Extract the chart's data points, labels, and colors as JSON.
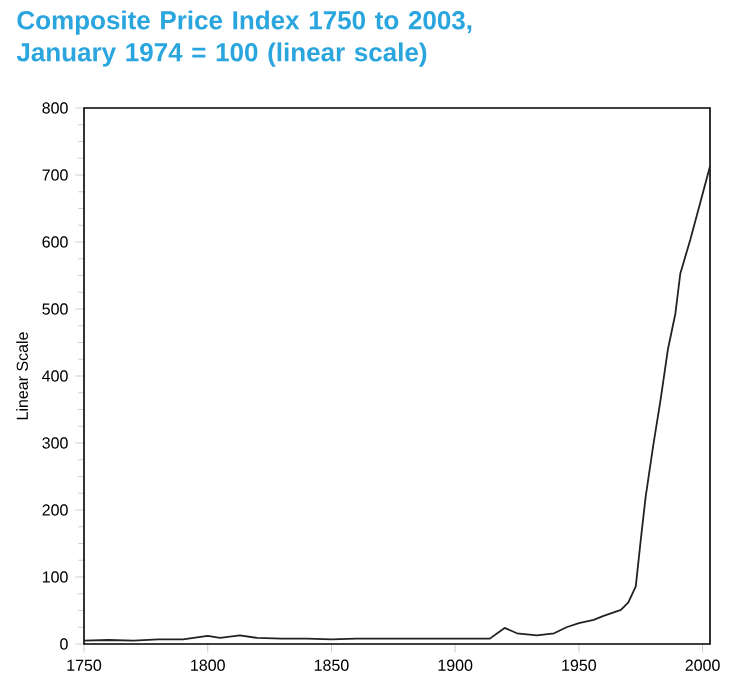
{
  "chart_data": {
    "type": "line",
    "title": "Composite Price Index 1750 to 2003, January 1974 = 100 (linear scale)",
    "ylabel": "Linear Scale",
    "x": [
      1750,
      1760,
      1770,
      1780,
      1790,
      1800,
      1805,
      1813,
      1820,
      1830,
      1840,
      1850,
      1860,
      1880,
      1900,
      1914,
      1920,
      1925,
      1933,
      1940,
      1945,
      1950,
      1956,
      1960,
      1967,
      1970,
      1973,
      1975,
      1977,
      1980,
      1983,
      1986,
      1989,
      1991,
      1995,
      1999,
      2003
    ],
    "series": [
      {
        "color": "#222222",
        "values": [
          5,
          6,
          5,
          7,
          7,
          12,
          9,
          13,
          9,
          8,
          8,
          7,
          8,
          8,
          8,
          8,
          24,
          16,
          13,
          16,
          25,
          31,
          36,
          42,
          51,
          62,
          86,
          155,
          220,
          295,
          364,
          440,
          493,
          553,
          603,
          658,
          713
        ]
      }
    ],
    "xlim": [
      1750,
      2003
    ],
    "ylim": [
      0,
      800
    ],
    "xticks": [
      1750,
      1800,
      1850,
      1900,
      1950,
      2000
    ],
    "yticks": [
      0,
      100,
      200,
      300,
      400,
      500,
      600,
      700,
      800
    ],
    "grid": false,
    "marker": "none",
    "line_style": "solid"
  }
}
